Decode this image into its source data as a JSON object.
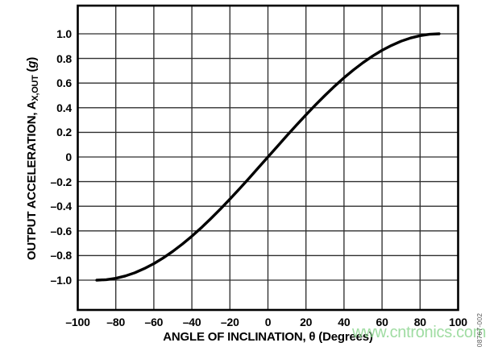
{
  "figure": {
    "background": "#ffffff",
    "watermark": {
      "text": "www.cntronics.com",
      "color": "#8fd792"
    },
    "figure_code": {
      "text": "08767-002",
      "color": "#595959"
    }
  },
  "chart_data": {
    "type": "line",
    "title": "",
    "xlabel": "ANGLE OF INCLINATION, θ (Degrees)",
    "ylabel": "OUTPUT ACCELERATION, AX,OUT (g)",
    "ylabel_parts": {
      "main": "OUTPUT ACCELERATION, A",
      "subscript": "X,OUT",
      "paren_open": " (",
      "italic_g": "g",
      "paren_close": ")"
    },
    "xlim": [
      -100,
      100
    ],
    "ylim": [
      -1.24,
      1.23
    ],
    "grid": true,
    "legend": "none",
    "line_color": "#000000",
    "grid_color": "#2f2f2f",
    "axis_color": "#000000",
    "x_ticks": {
      "values": [
        -100,
        -80,
        -60,
        -40,
        -20,
        0,
        20,
        40,
        60,
        80,
        100
      ],
      "labels": [
        "–100",
        "–80",
        "–60",
        "–40",
        "–20",
        "0",
        "20",
        "40",
        "60",
        "80",
        "100"
      ]
    },
    "y_ticks": {
      "values": [
        1.0,
        0.8,
        0.6,
        0.4,
        0.2,
        0,
        -0.2,
        -0.4,
        -0.6,
        -0.8,
        -1.0
      ],
      "labels": [
        "1.0",
        "0.8",
        "0.6",
        "0.4",
        "0.2",
        "0",
        "–0.2",
        "–0.4",
        "–0.6",
        "–0.8",
        "–1.0"
      ]
    },
    "series": [
      {
        "x": [
          -90,
          -85,
          -80,
          -75,
          -70,
          -65,
          -60,
          -55,
          -50,
          -45,
          -40,
          -35,
          -30,
          -25,
          -20,
          -15,
          -10,
          -5,
          0,
          5,
          10,
          15,
          20,
          25,
          30,
          35,
          40,
          45,
          50,
          55,
          60,
          65,
          70,
          75,
          80,
          85,
          90
        ],
        "y": [
          -1.0,
          -0.996,
          -0.985,
          -0.966,
          -0.94,
          -0.906,
          -0.866,
          -0.819,
          -0.766,
          -0.707,
          -0.643,
          -0.574,
          -0.5,
          -0.423,
          -0.342,
          -0.259,
          -0.174,
          -0.087,
          0,
          0.087,
          0.174,
          0.259,
          0.342,
          0.423,
          0.5,
          0.574,
          0.643,
          0.707,
          0.766,
          0.819,
          0.866,
          0.906,
          0.94,
          0.966,
          0.985,
          0.996,
          1.0
        ]
      }
    ]
  }
}
